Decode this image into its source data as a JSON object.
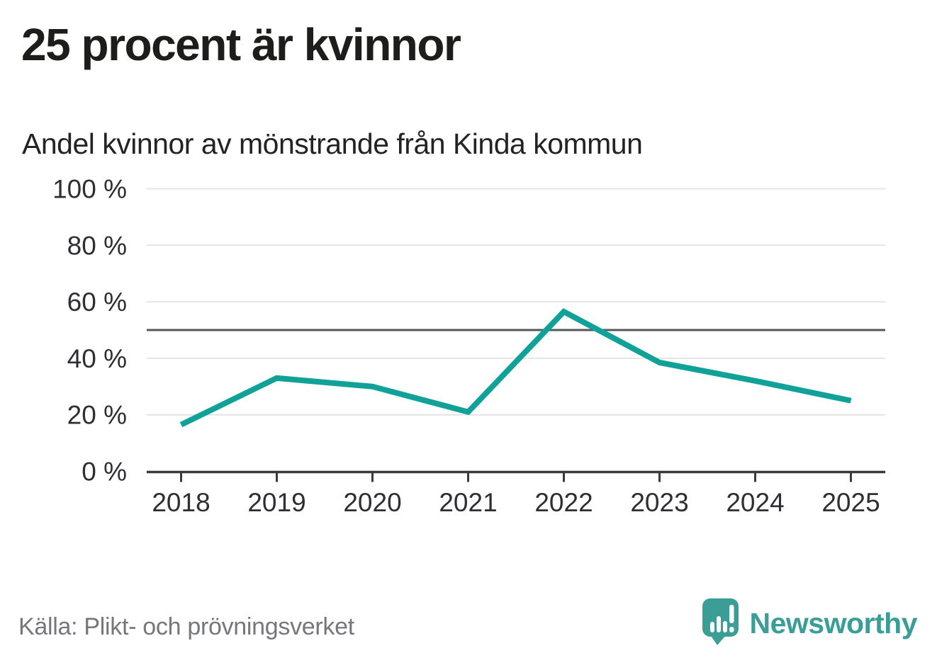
{
  "header": {
    "title": "25 procent är kvinnor",
    "subtitle": "Andel kvinnor av mönstrande från Kinda kommun"
  },
  "footer": {
    "source": "Källa: Plikt- och prövningsverket",
    "brand": "Newsworthy"
  },
  "colors": {
    "line": "#10a298",
    "brand_teal": "#3a9e96",
    "grid": "#e4e4e5",
    "reference": "#56575b",
    "axis": "#3a3a3e",
    "tick_text": "#2f2f33",
    "title_text": "#1d1d1b",
    "muted_text": "#76777d"
  },
  "chart_data": {
    "type": "line",
    "x": [
      2018,
      2019,
      2020,
      2021,
      2022,
      2023,
      2024,
      2025
    ],
    "series": [
      {
        "name": "Andel kvinnor av mönstrande",
        "values": [
          16.5,
          33,
          30,
          21,
          56.5,
          38.5,
          32,
          25
        ]
      }
    ],
    "title": "25 procent är kvinnor",
    "subtitle": "Andel kvinnor av mönstrande från Kinda kommun",
    "xlabel": "",
    "ylabel": "",
    "ylim": [
      0,
      100
    ],
    "yticks": [
      0,
      20,
      40,
      60,
      80,
      100
    ],
    "ytick_suffix": " %",
    "reference_line": 50,
    "grid": true,
    "legend": false
  }
}
